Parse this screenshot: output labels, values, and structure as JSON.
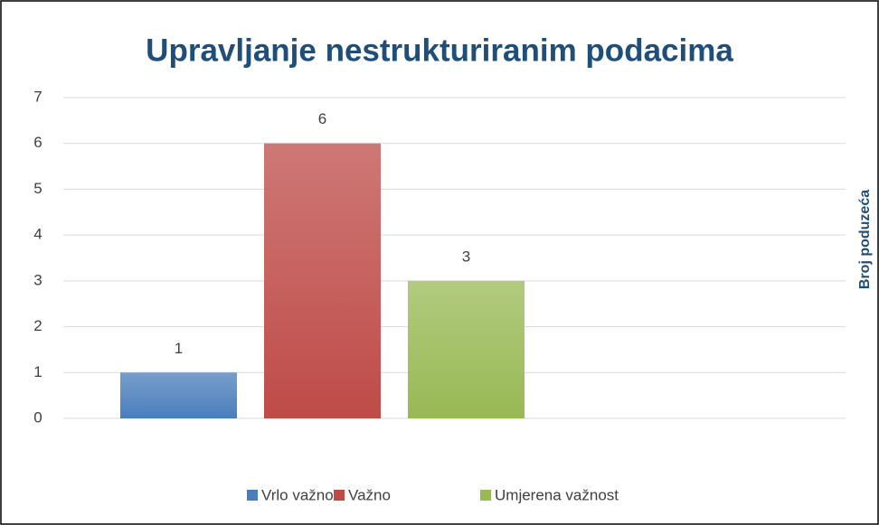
{
  "chart_data": {
    "type": "bar",
    "title": "Upravljanje nestrukturiranim podacima",
    "y_label": "Broj poduzeća",
    "categories": [
      null
    ],
    "series": [
      {
        "name": "Vrlo važno",
        "color": "#4a7ebb",
        "values": [
          1
        ]
      },
      {
        "name": "Važno",
        "color": "#be4b48",
        "values": [
          6
        ]
      },
      {
        "name": "Umjerena važnost",
        "color": "#98b954",
        "values": [
          3
        ]
      }
    ],
    "ylim": [
      0,
      7
    ],
    "yticks": [
      0,
      1,
      2,
      3,
      4,
      5,
      6,
      7
    ],
    "grid": true,
    "legend": "bottom"
  }
}
